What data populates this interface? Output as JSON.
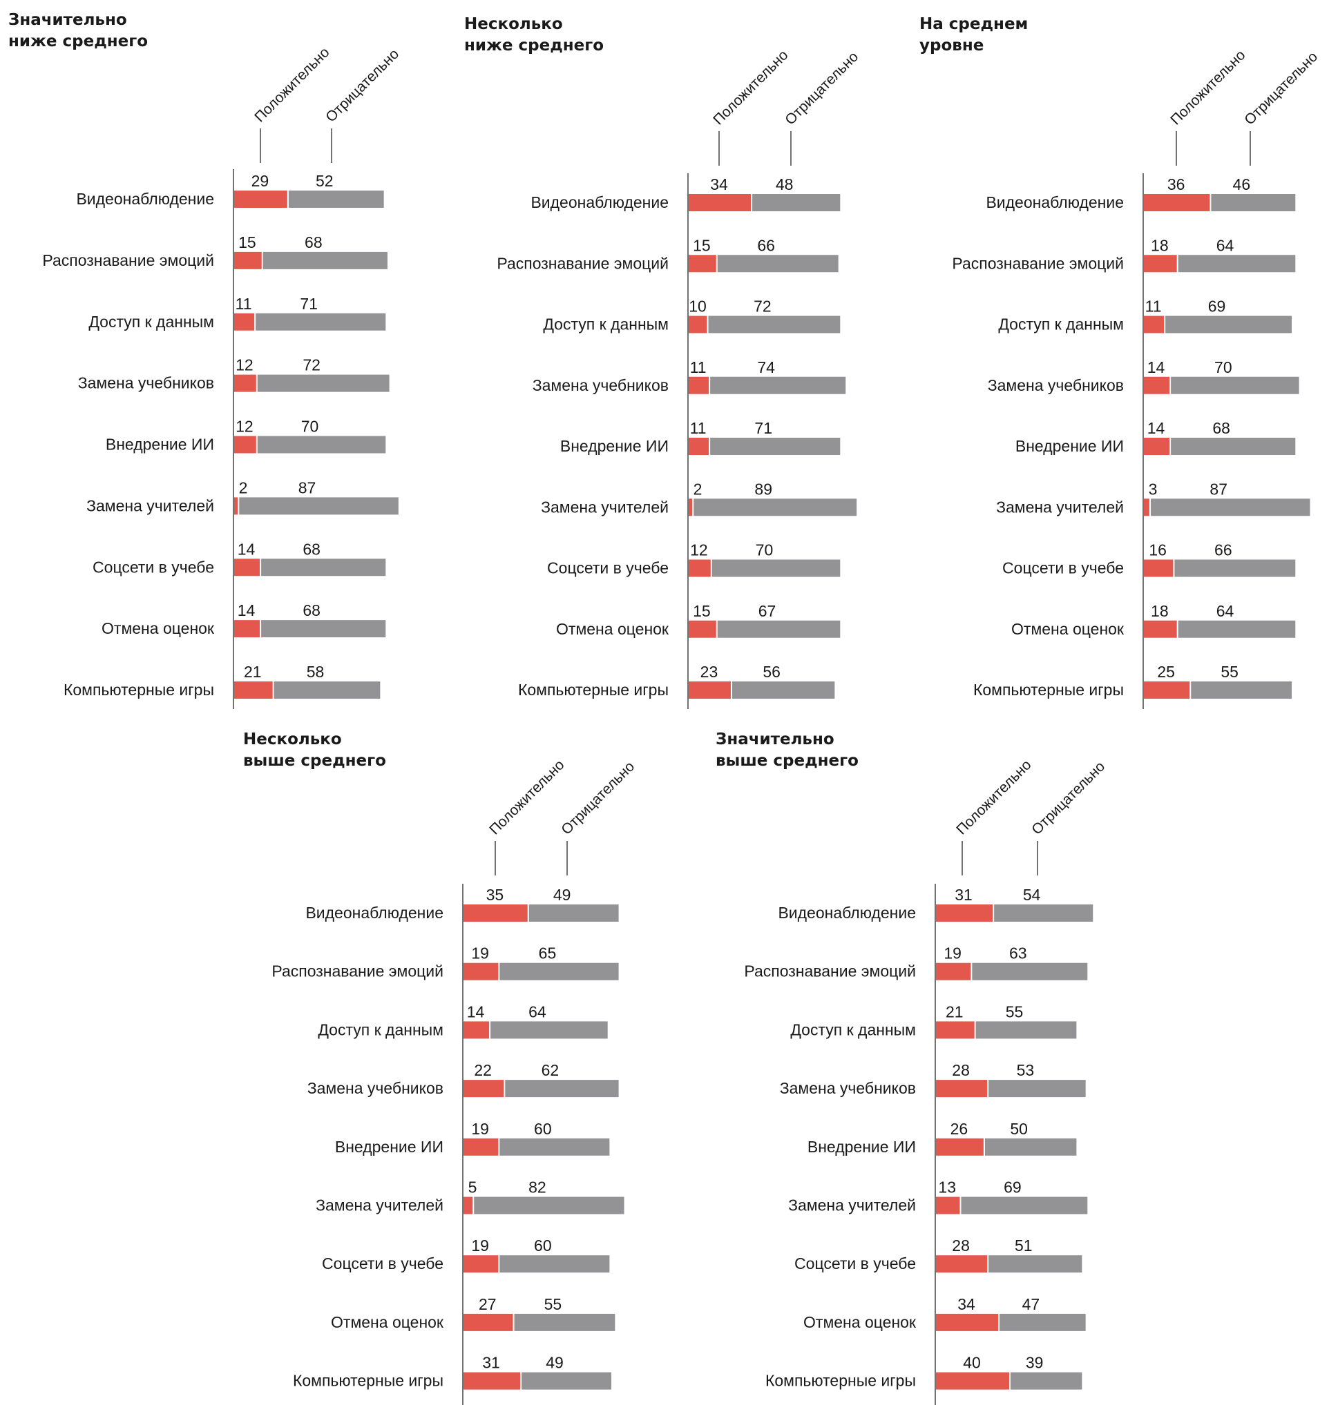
{
  "colors": {
    "positive": "#e4574c",
    "negative": "#939396",
    "text": "#1a1a1a"
  },
  "column_headers": {
    "positive": "Положительно",
    "negative": "Отрицательно"
  },
  "chart_data": [
    {
      "type": "bar",
      "stacked": true,
      "orientation": "horizontal",
      "title": "Значительно ниже среднего",
      "categories": [
        "Видеонаблюдение",
        "Распознавание эмоций",
        "Доступ к данным",
        "Замена учебников",
        "Внедрение ИИ",
        "Замена учителей",
        "Соцсети в учебе",
        "Отмена оценок",
        "Компьютерные игры"
      ],
      "series": [
        {
          "name": "Положительно",
          "values": [
            29,
            15,
            11,
            12,
            12,
            2,
            14,
            14,
            21
          ]
        },
        {
          "name": "Отрицательно",
          "values": [
            52,
            68,
            71,
            72,
            70,
            87,
            68,
            68,
            58
          ]
        }
      ]
    },
    {
      "type": "bar",
      "stacked": true,
      "orientation": "horizontal",
      "title": "Несколько ниже среднего",
      "categories": [
        "Видеонаблюдение",
        "Распознавание эмоций",
        "Доступ к данным",
        "Замена учебников",
        "Внедрение ИИ",
        "Замена учителей",
        "Соцсети в учебе",
        "Отмена оценок",
        "Компьютерные игры"
      ],
      "series": [
        {
          "name": "Положительно",
          "values": [
            34,
            15,
            10,
            11,
            11,
            2,
            12,
            15,
            23
          ]
        },
        {
          "name": "Отрицательно",
          "values": [
            48,
            66,
            72,
            74,
            71,
            89,
            70,
            67,
            56
          ]
        }
      ]
    },
    {
      "type": "bar",
      "stacked": true,
      "orientation": "horizontal",
      "title": "На среднем уровне",
      "categories": [
        "Видеонаблюдение",
        "Распознавание эмоций",
        "Доступ к данным",
        "Замена учебников",
        "Внедрение ИИ",
        "Замена учителей",
        "Соцсети в учебе",
        "Отмена оценок",
        "Компьютерные игры"
      ],
      "series": [
        {
          "name": "Положительно",
          "values": [
            36,
            18,
            11,
            14,
            14,
            3,
            16,
            18,
            25
          ]
        },
        {
          "name": "Отрицательно",
          "values": [
            46,
            64,
            69,
            70,
            68,
            87,
            66,
            64,
            55
          ]
        }
      ]
    },
    {
      "type": "bar",
      "stacked": true,
      "orientation": "horizontal",
      "title": "Несколько выше среднего",
      "categories": [
        "Видеонаблюдение",
        "Распознавание эмоций",
        "Доступ к данным",
        "Замена учебников",
        "Внедрение ИИ",
        "Замена учителей",
        "Соцсети в учебе",
        "Отмена оценок",
        "Компьютерные игры"
      ],
      "series": [
        {
          "name": "Положительно",
          "values": [
            35,
            19,
            14,
            22,
            19,
            5,
            19,
            27,
            31
          ]
        },
        {
          "name": "Отрицательно",
          "values": [
            49,
            65,
            64,
            62,
            60,
            82,
            60,
            55,
            49
          ]
        }
      ]
    },
    {
      "type": "bar",
      "stacked": true,
      "orientation": "horizontal",
      "title": "Значительно выше среднего",
      "categories": [
        "Видеонаблюдение",
        "Распознавание эмоций",
        "Доступ к данным",
        "Замена учебников",
        "Внедрение ИИ",
        "Замена учителей",
        "Соцсети в учебе",
        "Отмена оценок",
        "Компьютерные игры"
      ],
      "series": [
        {
          "name": "Положительно",
          "values": [
            31,
            19,
            21,
            28,
            26,
            13,
            28,
            34,
            40
          ]
        },
        {
          "name": "Отрицательно",
          "values": [
            54,
            63,
            55,
            53,
            50,
            69,
            51,
            47,
            39
          ]
        }
      ]
    }
  ]
}
